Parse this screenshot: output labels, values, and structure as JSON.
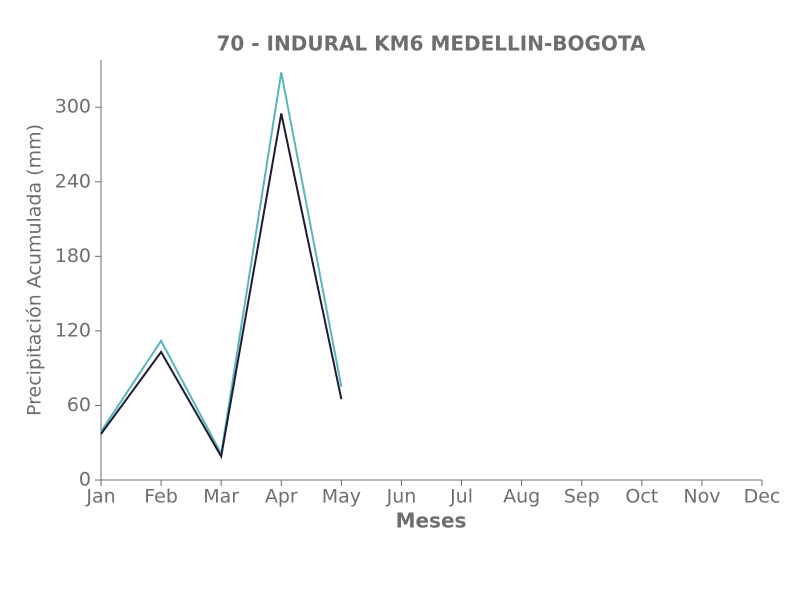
{
  "chart_data": {
    "type": "line",
    "title": "70 - INDURAL KM6 MEDELLIN-BOGOTA",
    "x_label": "Meses",
    "y_label": "Precipitación Acumulada (mm)",
    "categories": [
      "Jan",
      "Feb",
      "Mar",
      "Apr",
      "May",
      "Jun",
      "Jul",
      "Aug",
      "Sep",
      "Oct",
      "Nov",
      "Dec"
    ],
    "series": [
      {
        "color": "#5ab4bc",
        "values": [
          39,
          112,
          21,
          328,
          75,
          null,
          null,
          null,
          null,
          null,
          null,
          null
        ]
      },
      {
        "color": "#1c1b35",
        "values": [
          37,
          103,
          19,
          295,
          65,
          null,
          null,
          null,
          null,
          null,
          null,
          null
        ]
      }
    ],
    "ylim": [
      0,
      338
    ],
    "yticks": [
      0,
      60,
      120,
      180,
      240,
      300
    ],
    "grid": false
  }
}
